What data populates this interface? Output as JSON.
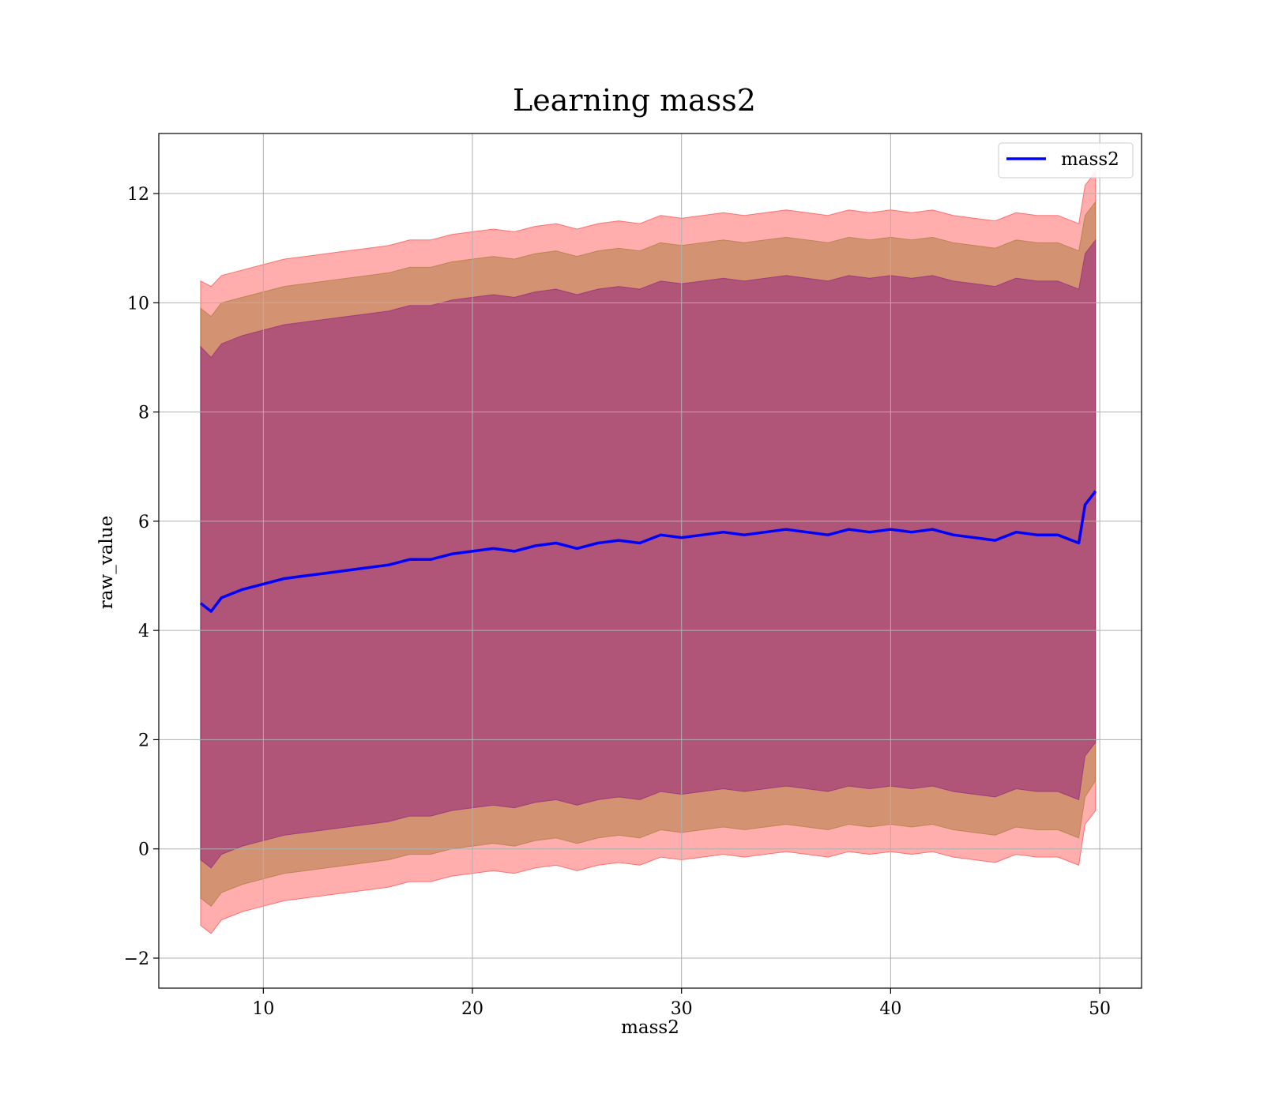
{
  "chart_data": {
    "type": "line",
    "title": "Learning mass2",
    "xlabel": "mass2",
    "ylabel": "raw_value",
    "xlim": [
      5,
      52
    ],
    "ylim": [
      -2.55,
      13.1
    ],
    "xticks": [
      10,
      20,
      30,
      40,
      50
    ],
    "yticks": [
      -2,
      0,
      2,
      4,
      6,
      8,
      10,
      12
    ],
    "xtick_labels": [
      "10",
      "20",
      "30",
      "40",
      "50"
    ],
    "ytick_labels": [
      "−2",
      "0",
      "2",
      "4",
      "6",
      "8",
      "10",
      "12"
    ],
    "grid": true,
    "legend": {
      "position": "top-right",
      "entries": [
        "mass2"
      ]
    },
    "colors": {
      "line": "#0000ff",
      "band_outer": "#ff0000",
      "band_middle": "#8b6914",
      "band_inner": "#800080"
    },
    "series": [
      {
        "name": "mass2",
        "kind": "line",
        "x": [
          7,
          7.5,
          8,
          9,
          10,
          11,
          12,
          13,
          14,
          15,
          16,
          17,
          18,
          19,
          20,
          21,
          22,
          23,
          24,
          25,
          26,
          27,
          28,
          29,
          30,
          31,
          32,
          33,
          34,
          35,
          36,
          37,
          38,
          39,
          40,
          41,
          42,
          43,
          44,
          45,
          46,
          47,
          48,
          49,
          49.3,
          49.8
        ],
        "y": [
          4.5,
          4.35,
          4.6,
          4.75,
          4.85,
          4.95,
          5.0,
          5.05,
          5.1,
          5.15,
          5.2,
          5.3,
          5.3,
          5.4,
          5.45,
          5.5,
          5.45,
          5.55,
          5.6,
          5.5,
          5.6,
          5.65,
          5.6,
          5.75,
          5.7,
          5.75,
          5.8,
          5.75,
          5.8,
          5.85,
          5.8,
          5.75,
          5.85,
          5.8,
          5.85,
          5.8,
          5.85,
          5.75,
          5.7,
          5.65,
          5.8,
          5.75,
          5.75,
          5.6,
          6.3,
          6.55
        ]
      },
      {
        "kind": "band",
        "level": "outer",
        "x": [
          7,
          7.5,
          8,
          9,
          10,
          11,
          12,
          13,
          14,
          15,
          16,
          17,
          18,
          19,
          20,
          21,
          22,
          23,
          24,
          25,
          26,
          27,
          28,
          29,
          30,
          31,
          32,
          33,
          34,
          35,
          36,
          37,
          38,
          39,
          40,
          41,
          42,
          43,
          44,
          45,
          46,
          47,
          48,
          49,
          49.3,
          49.8
        ],
        "upper": [
          10.4,
          10.3,
          10.5,
          10.6,
          10.7,
          10.8,
          10.85,
          10.9,
          10.95,
          11.0,
          11.05,
          11.15,
          11.15,
          11.25,
          11.3,
          11.35,
          11.3,
          11.4,
          11.45,
          11.35,
          11.45,
          11.5,
          11.45,
          11.6,
          11.55,
          11.6,
          11.65,
          11.6,
          11.65,
          11.7,
          11.65,
          11.6,
          11.7,
          11.65,
          11.7,
          11.65,
          11.7,
          11.6,
          11.55,
          11.5,
          11.65,
          11.6,
          11.6,
          11.45,
          12.15,
          12.4
        ],
        "lower": [
          -1.4,
          -1.55,
          -1.3,
          -1.15,
          -1.05,
          -0.95,
          -0.9,
          -0.85,
          -0.8,
          -0.75,
          -0.7,
          -0.6,
          -0.6,
          -0.5,
          -0.45,
          -0.4,
          -0.45,
          -0.35,
          -0.3,
          -0.4,
          -0.3,
          -0.25,
          -0.3,
          -0.15,
          -0.2,
          -0.15,
          -0.1,
          -0.15,
          -0.1,
          -0.05,
          -0.1,
          -0.15,
          -0.05,
          -0.1,
          -0.05,
          -0.1,
          -0.05,
          -0.15,
          -0.2,
          -0.25,
          -0.1,
          -0.15,
          -0.15,
          -0.3,
          0.45,
          0.7
        ]
      },
      {
        "kind": "band",
        "level": "middle",
        "x": [
          7,
          7.5,
          8,
          9,
          10,
          11,
          12,
          13,
          14,
          15,
          16,
          17,
          18,
          19,
          20,
          21,
          22,
          23,
          24,
          25,
          26,
          27,
          28,
          29,
          30,
          31,
          32,
          33,
          34,
          35,
          36,
          37,
          38,
          39,
          40,
          41,
          42,
          43,
          44,
          45,
          46,
          47,
          48,
          49,
          49.3,
          49.8
        ],
        "upper": [
          9.9,
          9.75,
          10.0,
          10.1,
          10.2,
          10.3,
          10.35,
          10.4,
          10.45,
          10.5,
          10.55,
          10.65,
          10.65,
          10.75,
          10.8,
          10.85,
          10.8,
          10.9,
          10.95,
          10.85,
          10.95,
          11.0,
          10.95,
          11.1,
          11.05,
          11.1,
          11.15,
          11.1,
          11.15,
          11.2,
          11.15,
          11.1,
          11.2,
          11.15,
          11.2,
          11.15,
          11.2,
          11.1,
          11.05,
          11.0,
          11.15,
          11.1,
          11.1,
          10.95,
          11.6,
          11.85
        ],
        "lower": [
          -0.9,
          -1.05,
          -0.8,
          -0.65,
          -0.55,
          -0.45,
          -0.4,
          -0.35,
          -0.3,
          -0.25,
          -0.2,
          -0.1,
          -0.1,
          0.0,
          0.05,
          0.1,
          0.05,
          0.15,
          0.2,
          0.1,
          0.2,
          0.25,
          0.2,
          0.35,
          0.3,
          0.35,
          0.4,
          0.35,
          0.4,
          0.45,
          0.4,
          0.35,
          0.45,
          0.4,
          0.45,
          0.4,
          0.45,
          0.35,
          0.3,
          0.25,
          0.4,
          0.35,
          0.35,
          0.2,
          0.95,
          1.25
        ]
      },
      {
        "kind": "band",
        "level": "inner",
        "x": [
          7,
          7.5,
          8,
          9,
          10,
          11,
          12,
          13,
          14,
          15,
          16,
          17,
          18,
          19,
          20,
          21,
          22,
          23,
          24,
          25,
          26,
          27,
          28,
          29,
          30,
          31,
          32,
          33,
          34,
          35,
          36,
          37,
          38,
          39,
          40,
          41,
          42,
          43,
          44,
          45,
          46,
          47,
          48,
          49,
          49.3,
          49.8
        ],
        "upper": [
          9.2,
          9.0,
          9.25,
          9.4,
          9.5,
          9.6,
          9.65,
          9.7,
          9.75,
          9.8,
          9.85,
          9.95,
          9.95,
          10.05,
          10.1,
          10.15,
          10.1,
          10.2,
          10.25,
          10.15,
          10.25,
          10.3,
          10.25,
          10.4,
          10.35,
          10.4,
          10.45,
          10.4,
          10.45,
          10.5,
          10.45,
          10.4,
          10.5,
          10.45,
          10.5,
          10.45,
          10.5,
          10.4,
          10.35,
          10.3,
          10.45,
          10.4,
          10.4,
          10.25,
          10.9,
          11.15
        ],
        "lower": [
          -0.2,
          -0.35,
          -0.1,
          0.05,
          0.15,
          0.25,
          0.3,
          0.35,
          0.4,
          0.45,
          0.5,
          0.6,
          0.6,
          0.7,
          0.75,
          0.8,
          0.75,
          0.85,
          0.9,
          0.8,
          0.9,
          0.95,
          0.9,
          1.05,
          1.0,
          1.05,
          1.1,
          1.05,
          1.1,
          1.15,
          1.1,
          1.05,
          1.15,
          1.1,
          1.15,
          1.1,
          1.15,
          1.05,
          1.0,
          0.95,
          1.1,
          1.05,
          1.05,
          0.9,
          1.7,
          1.95
        ]
      }
    ]
  }
}
